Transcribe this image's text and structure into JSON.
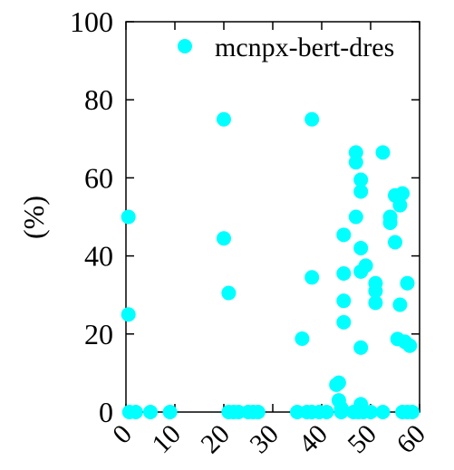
{
  "chart_data": {
    "type": "scatter",
    "title": "",
    "xlabel": "",
    "ylabel": "(%)",
    "xlim": [
      0,
      60
    ],
    "ylim": [
      0,
      100
    ],
    "xticks": [
      "0",
      "10",
      "20",
      "30",
      "40",
      "50",
      "60"
    ],
    "yticks": [
      "0",
      "20",
      "40",
      "60",
      "80",
      "100"
    ],
    "grid": false,
    "legend_position": "top-right",
    "series": [
      {
        "name": "mcnpx-bert-dres",
        "color": "#00ffff",
        "marker": "circle",
        "points": [
          [
            0.5,
            50
          ],
          [
            0.5,
            25
          ],
          [
            0.7,
            0
          ],
          [
            2,
            0
          ],
          [
            5,
            0
          ],
          [
            9,
            0
          ],
          [
            20,
            75
          ],
          [
            20,
            44.5
          ],
          [
            21,
            30.5
          ],
          [
            21,
            0
          ],
          [
            22,
            0
          ],
          [
            23,
            0
          ],
          [
            25,
            0
          ],
          [
            26,
            0
          ],
          [
            27,
            0
          ],
          [
            35,
            0
          ],
          [
            36,
            18.8
          ],
          [
            37,
            0
          ],
          [
            38,
            75
          ],
          [
            38,
            34.5
          ],
          [
            38,
            0
          ],
          [
            39.5,
            0
          ],
          [
            41,
            0
          ],
          [
            43,
            7
          ],
          [
            43.5,
            7.5
          ],
          [
            43.5,
            3
          ],
          [
            44,
            1
          ],
          [
            44,
            0
          ],
          [
            44.5,
            45.4
          ],
          [
            44.5,
            35.5
          ],
          [
            44.5,
            28.5
          ],
          [
            44.5,
            23
          ],
          [
            46.5,
            0
          ],
          [
            47,
            66.5
          ],
          [
            47,
            64
          ],
          [
            47,
            50
          ],
          [
            47.5,
            0
          ],
          [
            48,
            59.5
          ],
          [
            48,
            56.5
          ],
          [
            48,
            42
          ],
          [
            48,
            36
          ],
          [
            48,
            16.5
          ],
          [
            48,
            2
          ],
          [
            48.5,
            0
          ],
          [
            49,
            37.5
          ],
          [
            50,
            0
          ],
          [
            51,
            33
          ],
          [
            51,
            31
          ],
          [
            51,
            28
          ],
          [
            52.5,
            66.5
          ],
          [
            52.5,
            0
          ],
          [
            54,
            50
          ],
          [
            54,
            48.5
          ],
          [
            55,
            55.5
          ],
          [
            55,
            43.5
          ],
          [
            55.5,
            18.7
          ],
          [
            56,
            27.5
          ],
          [
            56,
            53
          ],
          [
            56.5,
            56
          ],
          [
            56.5,
            0
          ],
          [
            57,
            18
          ],
          [
            57.5,
            0
          ],
          [
            57.5,
            33
          ],
          [
            58,
            17
          ],
          [
            58.5,
            0
          ]
        ]
      }
    ]
  }
}
